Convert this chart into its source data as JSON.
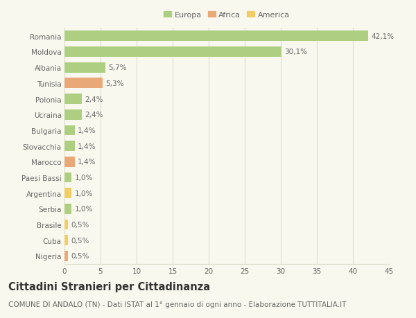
{
  "countries": [
    "Romania",
    "Moldova",
    "Albania",
    "Tunisia",
    "Polonia",
    "Ucraina",
    "Bulgaria",
    "Slovacchia",
    "Marocco",
    "Paesi Bassi",
    "Argentina",
    "Serbia",
    "Brasile",
    "Cuba",
    "Nigeria"
  ],
  "values": [
    42.1,
    30.1,
    5.7,
    5.3,
    2.4,
    2.4,
    1.4,
    1.4,
    1.4,
    1.0,
    1.0,
    1.0,
    0.5,
    0.5,
    0.5
  ],
  "labels": [
    "42,1%",
    "30,1%",
    "5,7%",
    "5,3%",
    "2,4%",
    "2,4%",
    "1,4%",
    "1,4%",
    "1,4%",
    "1,0%",
    "1,0%",
    "1,0%",
    "0,5%",
    "0,5%",
    "0,5%"
  ],
  "continents": [
    "Europa",
    "Europa",
    "Europa",
    "Africa",
    "Europa",
    "Europa",
    "Europa",
    "Europa",
    "Africa",
    "Europa",
    "America",
    "Europa",
    "America",
    "America",
    "Africa"
  ],
  "colors": {
    "Europa": "#aecf82",
    "Africa": "#e8a878",
    "America": "#f0ce65"
  },
  "background_color": "#f8f8ef",
  "grid_color": "#ddddcc",
  "title": "Cittadini Stranieri per Cittadinanza",
  "subtitle": "COMUNE DI ANDALO (TN) - Dati ISTAT al 1° gennaio di ogni anno - Elaborazione TUTTITALIA.IT",
  "xlim": [
    0,
    45
  ],
  "xticks": [
    0,
    5,
    10,
    15,
    20,
    25,
    30,
    35,
    40,
    45
  ],
  "bar_height": 0.65,
  "text_color": "#666666",
  "label_fontsize": 7.5,
  "tick_fontsize": 7.5,
  "title_fontsize": 10.5,
  "subtitle_fontsize": 7.5
}
